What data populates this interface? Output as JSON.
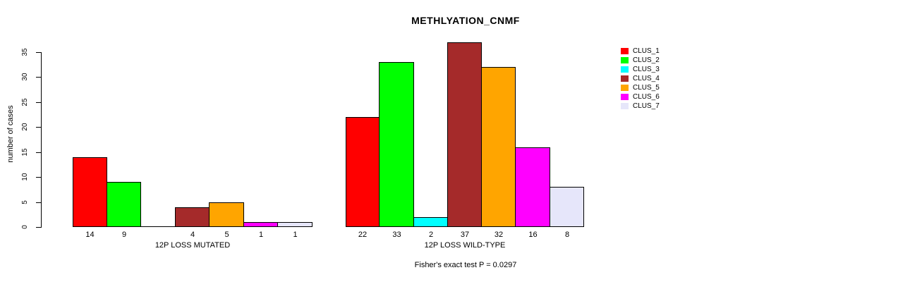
{
  "chart_data": {
    "type": "bar",
    "title": "METHLYATION_CNMF",
    "ylabel": "number of cases",
    "ylim": [
      0,
      35
    ],
    "yticks": [
      0,
      5,
      10,
      15,
      20,
      25,
      30,
      35
    ],
    "grid": false,
    "legend_position": "right-outside",
    "annotation": "Fisher's exact test P = 0.0297",
    "groups": [
      "12P LOSS MUTATED",
      "12P LOSS WILD-TYPE"
    ],
    "series": [
      {
        "name": "CLUS_1",
        "color": "#ff0000",
        "values": [
          14,
          22
        ]
      },
      {
        "name": "CLUS_2",
        "color": "#00ff00",
        "values": [
          9,
          33
        ]
      },
      {
        "name": "CLUS_3",
        "color": "#00ffff",
        "values": [
          0,
          2
        ]
      },
      {
        "name": "CLUS_4",
        "color": "#a52a2a",
        "values": [
          4,
          37
        ]
      },
      {
        "name": "CLUS_5",
        "color": "#ffa500",
        "values": [
          5,
          32
        ]
      },
      {
        "name": "CLUS_6",
        "color": "#ff00ff",
        "values": [
          1,
          16
        ]
      },
      {
        "name": "CLUS_7",
        "color": "#e6e6fa",
        "values": [
          1,
          8
        ]
      }
    ],
    "bar_value_labels_shown": true,
    "zero_value_labels_hidden": true
  }
}
